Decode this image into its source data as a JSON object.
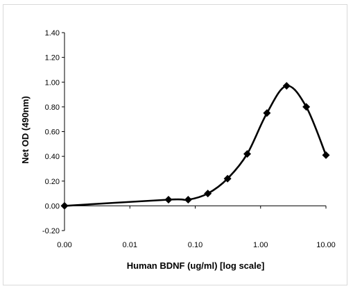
{
  "chart_data": {
    "type": "line",
    "xlabel": "Human BDNF (ug/ml) [log scale]",
    "ylabel": "Net OD (490nm)",
    "x_tick_labels": [
      "0.00",
      "0.01",
      "0.10",
      "1.00",
      "10.00"
    ],
    "y_tick_labels": [
      "-0.20",
      "0.00",
      "0.20",
      "0.40",
      "0.60",
      "0.80",
      "1.00",
      "1.20",
      "1.40"
    ],
    "x_scale": "log",
    "ylim": [
      -0.2,
      1.4
    ],
    "grid": false,
    "series": [
      {
        "x": [
          0.001,
          0.039,
          0.078,
          0.156,
          0.3125,
          0.625,
          1.25,
          2.5,
          5,
          10
        ],
        "y": [
          0.0,
          0.05,
          0.05,
          0.1,
          0.22,
          0.42,
          0.75,
          0.97,
          0.8,
          0.41
        ]
      }
    ]
  }
}
